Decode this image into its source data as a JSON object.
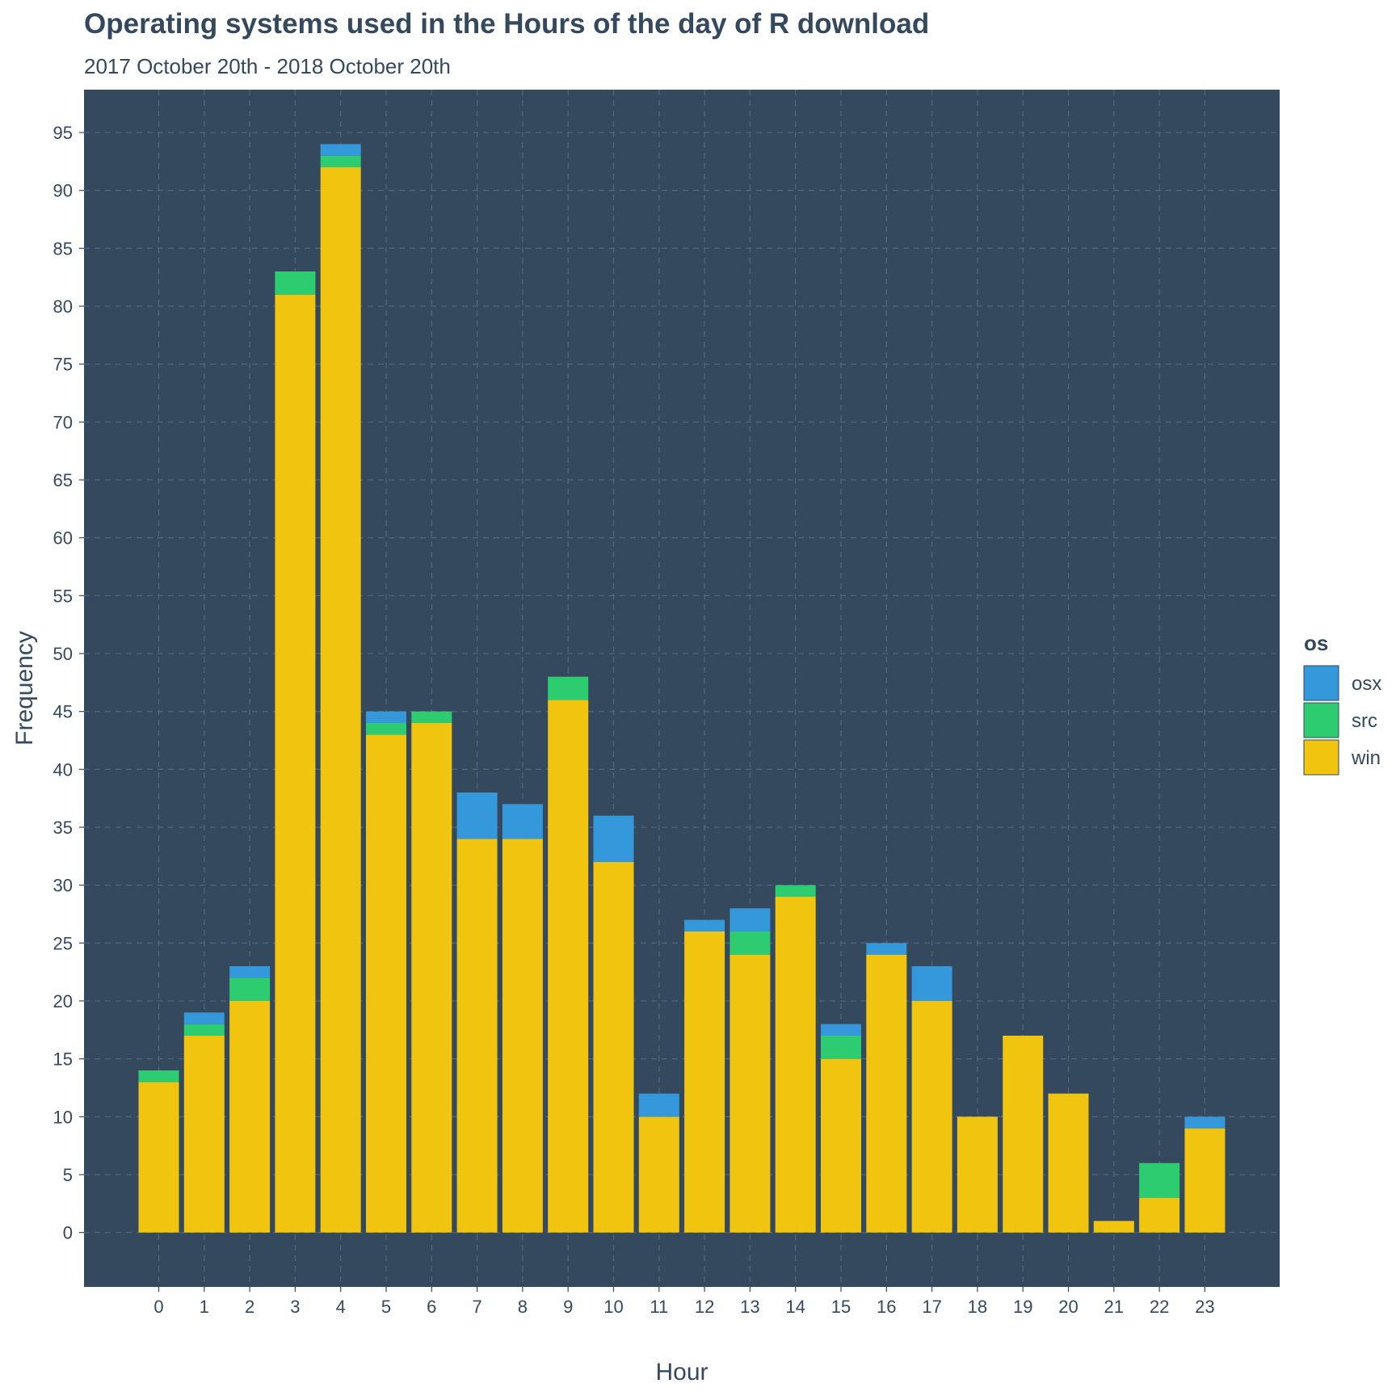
{
  "chart_data": {
    "type": "bar",
    "stacked": true,
    "title": "Operating systems used in the Hours of the day of R download",
    "subtitle": "2017 October 20th - 2018 October 20th",
    "xlabel": "Hour",
    "ylabel": "Frequency",
    "categories": [
      "0",
      "1",
      "2",
      "3",
      "4",
      "5",
      "6",
      "7",
      "8",
      "9",
      "10",
      "11",
      "12",
      "13",
      "14",
      "15",
      "16",
      "17",
      "18",
      "19",
      "20",
      "21",
      "22",
      "23"
    ],
    "series": [
      {
        "name": "win",
        "color": "#f1c40f",
        "values": [
          13,
          17,
          20,
          81,
          92,
          43,
          44,
          34,
          34,
          46,
          32,
          10,
          26,
          24,
          29,
          15,
          24,
          20,
          10,
          17,
          12,
          1,
          3,
          9
        ]
      },
      {
        "name": "src",
        "color": "#2ecc71",
        "values": [
          1,
          1,
          2,
          2,
          1,
          1,
          1,
          0,
          0,
          2,
          0,
          0,
          0,
          2,
          1,
          2,
          0,
          0,
          0,
          0,
          0,
          0,
          3,
          0
        ]
      },
      {
        "name": "osx",
        "color": "#3498db",
        "values": [
          0,
          1,
          1,
          0,
          1,
          1,
          0,
          4,
          3,
          0,
          4,
          2,
          1,
          2,
          0,
          1,
          1,
          3,
          0,
          0,
          0,
          0,
          0,
          1
        ]
      }
    ],
    "ylim": [
      -4.7,
      98.7
    ],
    "yticks": [
      0,
      5,
      10,
      15,
      20,
      25,
      30,
      35,
      40,
      45,
      50,
      55,
      60,
      65,
      70,
      75,
      80,
      85,
      90,
      95
    ],
    "grid": true,
    "legend": {
      "title": "os",
      "position": "right",
      "entries": [
        {
          "label": "osx",
          "color": "#3498db"
        },
        {
          "label": "src",
          "color": "#2ecc71"
        },
        {
          "label": "win",
          "color": "#f1c40f"
        }
      ]
    },
    "colors": {
      "panel_background": "#34495e",
      "grid": "#4e6580",
      "text": "#34495e"
    }
  }
}
